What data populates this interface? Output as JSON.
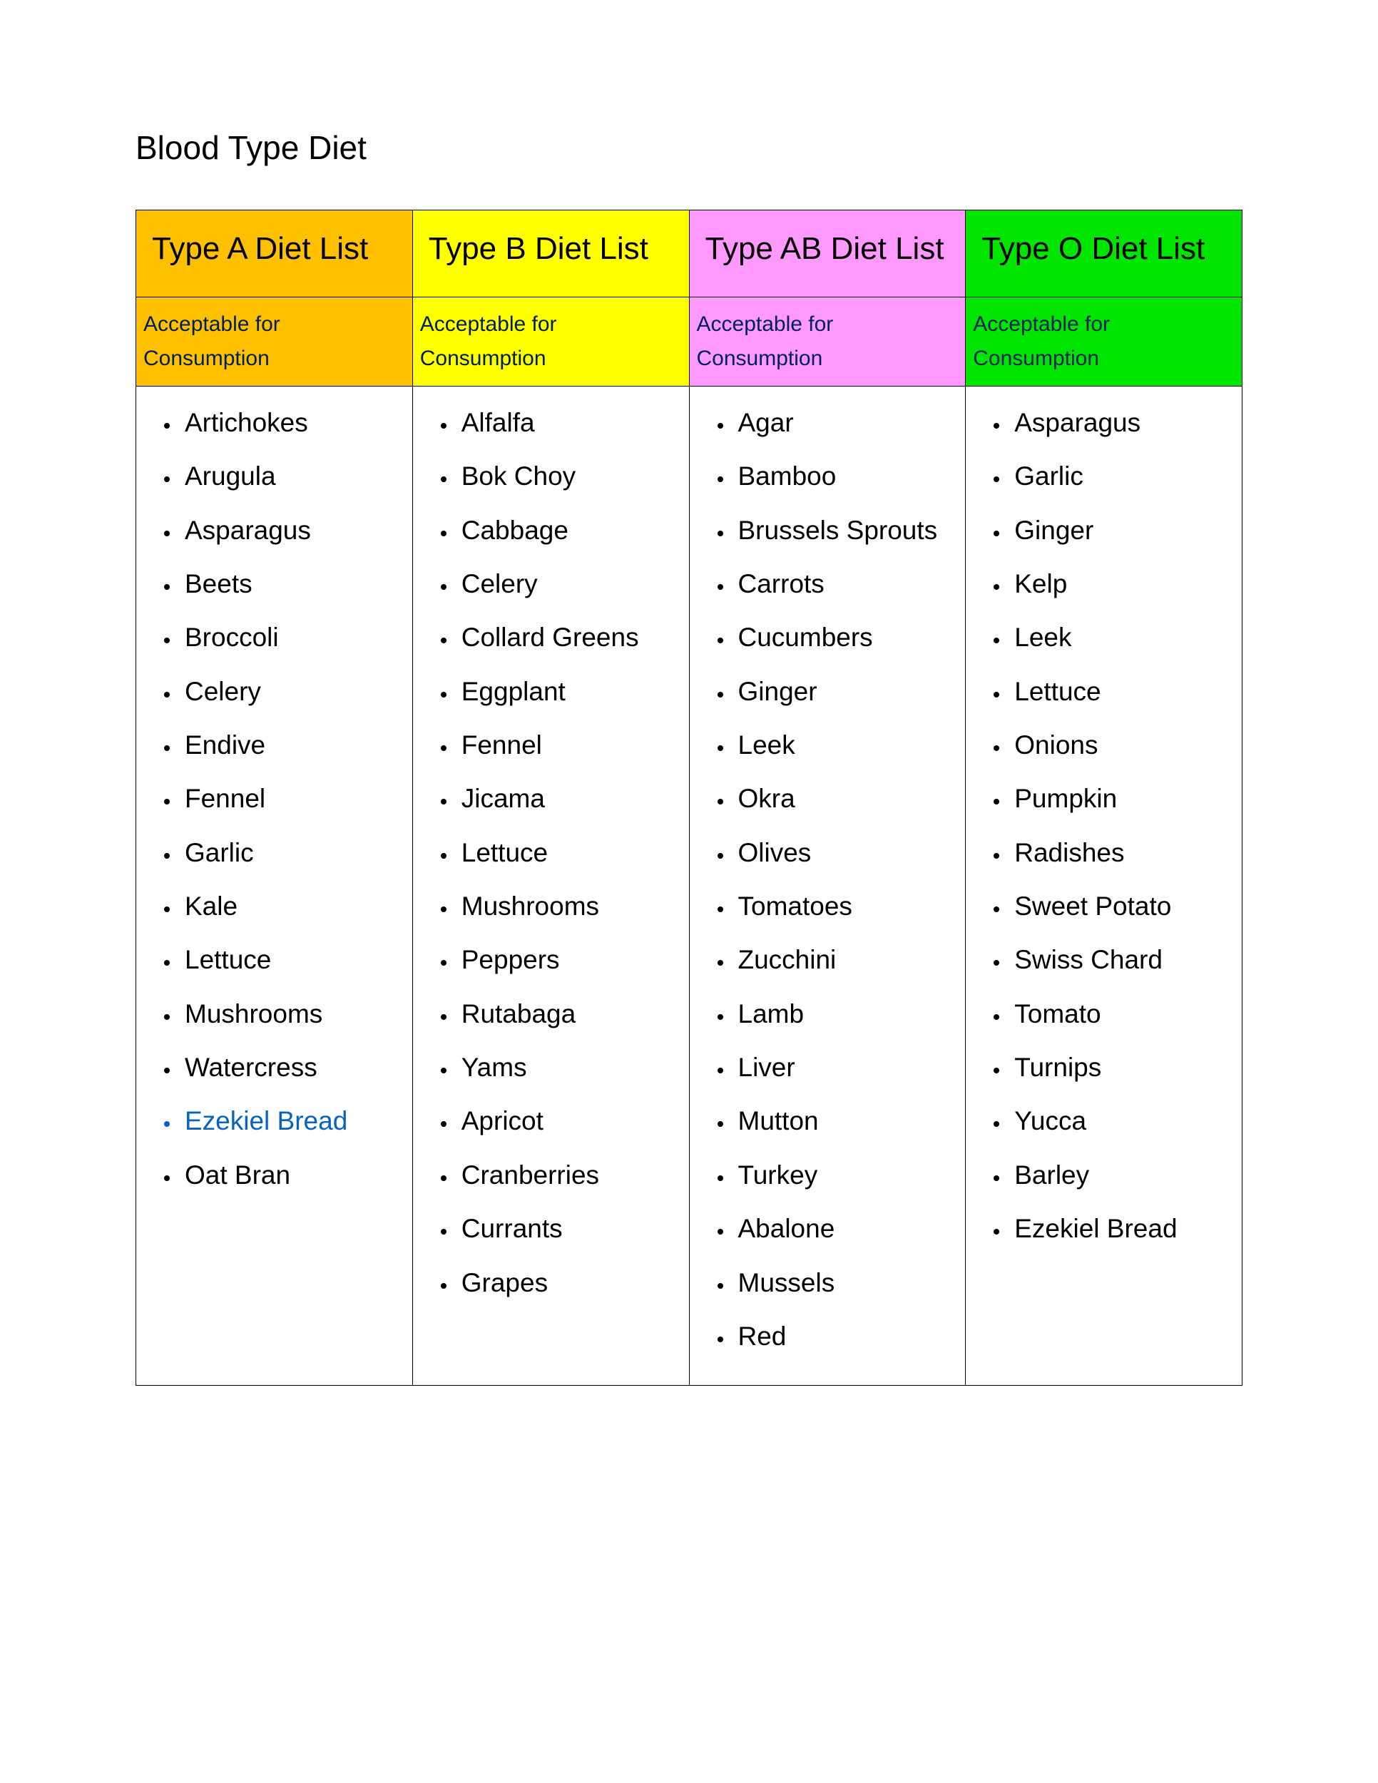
{
  "title": "Blood Type Diet",
  "subheader_label": "Acceptable for Consumption",
  "subheader_text_color": "#002060",
  "link_color": "#0563c1",
  "columns": [
    {
      "heading": "Type A Diet List",
      "header_bg": "#ffc000",
      "items": [
        {
          "text": "Artichok­es"
        },
        {
          "text": "Arugula"
        },
        {
          "text": "Asparag­us"
        },
        {
          "text": "Beets"
        },
        {
          "text": "Broccoli"
        },
        {
          "text": "Celery"
        },
        {
          "text": "Endive"
        },
        {
          "text": "Fennel"
        },
        {
          "text": "Garlic"
        },
        {
          "text": "Kale"
        },
        {
          "text": "Lettuce"
        },
        {
          "text": "Mushroo­ms"
        },
        {
          "text": "Watercr­ess"
        },
        {
          "text": "Ezekiel Bread",
          "link": true
        },
        {
          "text": "Oat Bran"
        }
      ]
    },
    {
      "heading": "Type B Diet List",
      "header_bg": "#ffff00",
      "items": [
        {
          "text": "Alfalfa"
        },
        {
          "text": "Bok Choy"
        },
        {
          "text": "Cabbage"
        },
        {
          "text": "Celery"
        },
        {
          "text": "Collard Greens"
        },
        {
          "text": "Eggplant"
        },
        {
          "text": "Fennel"
        },
        {
          "text": "Jicama"
        },
        {
          "text": "Lettuce"
        },
        {
          "text": "Mushroo­ms"
        },
        {
          "text": "Peppers"
        },
        {
          "text": "Rutabaga"
        },
        {
          "text": "Yams"
        },
        {
          "text": "Apricot"
        },
        {
          "text": "Cranberri­es"
        },
        {
          "text": "Currants"
        },
        {
          "text": "Grapes"
        }
      ]
    },
    {
      "heading": "Type AB Diet List",
      "header_bg": "#ff99ff",
      "items": [
        {
          "text": "Agar"
        },
        {
          "text": "Bamboo"
        },
        {
          "text": "Brussels Sprouts"
        },
        {
          "text": "Carrots"
        },
        {
          "text": "Cucumber­s"
        },
        {
          "text": "Ginger"
        },
        {
          "text": "Leek"
        },
        {
          "text": "Okra"
        },
        {
          "text": "Olives"
        },
        {
          "text": "Tomatoes"
        },
        {
          "text": "Zucchini"
        },
        {
          "text": "Lamb"
        },
        {
          "text": "Liver"
        },
        {
          "text": "Mutton"
        },
        {
          "text": "Turkey"
        },
        {
          "text": "Abalone"
        },
        {
          "text": "Mussels"
        },
        {
          "text": "Red"
        }
      ]
    },
    {
      "heading": "Type O Diet List",
      "header_bg": "#00e500",
      "items": [
        {
          "text": "Asparagu­s"
        },
        {
          "text": "Garlic"
        },
        {
          "text": "Ginger"
        },
        {
          "text": "Kelp"
        },
        {
          "text": "Leek"
        },
        {
          "text": "Lettuce"
        },
        {
          "text": "Onions"
        },
        {
          "text": "Pumpkin"
        },
        {
          "text": "Radishes"
        },
        {
          "text": "Sweet Potato"
        },
        {
          "text": "Swiss Chard"
        },
        {
          "text": "Tomato"
        },
        {
          "text": "Turnips"
        },
        {
          "text": "Yucca"
        },
        {
          "text": "Barley"
        },
        {
          "text": "Ezekiel Bread"
        }
      ]
    }
  ]
}
